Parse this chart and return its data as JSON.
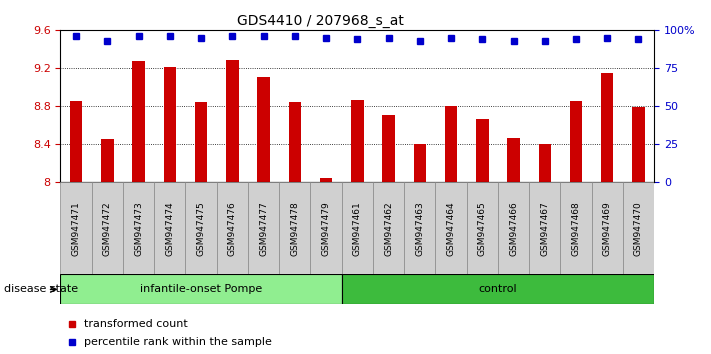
{
  "title": "GDS4410 / 207968_s_at",
  "samples": [
    "GSM947471",
    "GSM947472",
    "GSM947473",
    "GSM947474",
    "GSM947475",
    "GSM947476",
    "GSM947477",
    "GSM947478",
    "GSM947479",
    "GSM947461",
    "GSM947462",
    "GSM947463",
    "GSM947464",
    "GSM947465",
    "GSM947466",
    "GSM947467",
    "GSM947468",
    "GSM947469",
    "GSM947470"
  ],
  "bar_values": [
    8.85,
    8.46,
    9.27,
    9.21,
    8.84,
    9.29,
    9.11,
    8.84,
    8.05,
    8.87,
    8.71,
    8.4,
    8.8,
    8.67,
    8.47,
    8.4,
    8.85,
    9.15,
    8.79
  ],
  "dot_values": [
    96,
    93,
    96,
    96,
    95,
    96,
    96,
    96,
    95,
    94,
    95,
    93,
    95,
    94,
    93,
    93,
    94,
    95,
    94
  ],
  "groups": [
    {
      "label": "infantile-onset Pompe",
      "start": 0,
      "end": 9,
      "color": "#90ee90"
    },
    {
      "label": "control",
      "start": 9,
      "end": 19,
      "color": "#3dbb3d"
    }
  ],
  "ylim_left": [
    8.0,
    9.6
  ],
  "ylim_right": [
    0,
    100
  ],
  "yticks_left": [
    8.0,
    8.4,
    8.8,
    9.2,
    9.6
  ],
  "yticks_right": [
    0,
    25,
    50,
    75,
    100
  ],
  "ytick_labels_right": [
    "0",
    "25",
    "50",
    "75",
    "100%"
  ],
  "bar_color": "#cc0000",
  "dot_color": "#0000cc",
  "bar_width": 0.4,
  "disease_state_label": "disease state",
  "legend_bar_label": "transformed count",
  "legend_dot_label": "percentile rank within the sample",
  "sample_box_color": "#d0d0d0",
  "sample_box_border": "#888888"
}
